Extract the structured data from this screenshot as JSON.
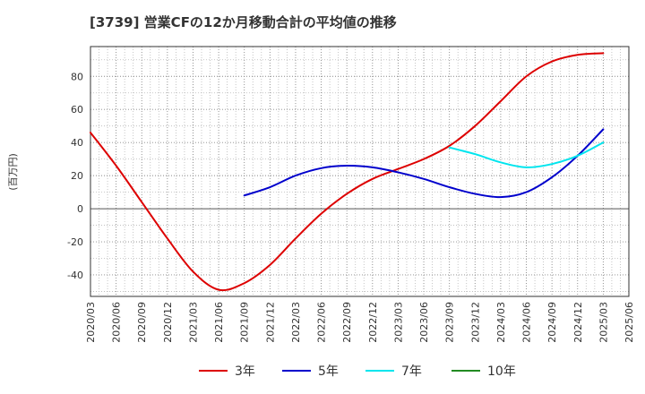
{
  "title": "[3739]  営業CFの12か月移動合計の平均値の推移",
  "chart_data": {
    "type": "line",
    "title": "[3739]  営業CFの12か月移動合計の平均値の推移",
    "ylabel": "(百万円)",
    "xlabel": "",
    "ylim": [
      -53,
      98
    ],
    "yticks": [
      -40,
      -20,
      0,
      20,
      40,
      60,
      80
    ],
    "x_ticks": [
      "2020/03",
      "2020/06",
      "2020/09",
      "2020/12",
      "2021/03",
      "2021/06",
      "2021/09",
      "2021/12",
      "2022/03",
      "2022/06",
      "2022/09",
      "2022/12",
      "2023/03",
      "2023/06",
      "2023/09",
      "2023/12",
      "2024/03",
      "2024/06",
      "2024/09",
      "2024/12",
      "2025/03",
      "2025/06"
    ],
    "grid": true,
    "legend_position": "bottom",
    "series": [
      {
        "name": "3年",
        "color": "#dd0000",
        "x": [
          "2020/03",
          "2020/06",
          "2020/09",
          "2020/12",
          "2021/03",
          "2021/06",
          "2021/09",
          "2021/12",
          "2022/03",
          "2022/06",
          "2022/09",
          "2022/12",
          "2023/03",
          "2023/06",
          "2023/09",
          "2023/12",
          "2024/03",
          "2024/06",
          "2024/09",
          "2024/12",
          "2025/03"
        ],
        "values": [
          46,
          26,
          4,
          -18,
          -38,
          -49,
          -45,
          -34,
          -18,
          -3,
          9,
          18,
          24,
          30,
          38,
          50,
          65,
          80,
          89,
          93,
          94
        ]
      },
      {
        "name": "5年",
        "color": "#0000cc",
        "x": [
          "2021/09",
          "2021/12",
          "2022/03",
          "2022/06",
          "2022/09",
          "2022/12",
          "2023/03",
          "2023/06",
          "2023/09",
          "2023/12",
          "2024/03",
          "2024/06",
          "2024/09",
          "2024/12",
          "2025/03"
        ],
        "values": [
          8,
          13,
          20,
          24.5,
          26,
          25,
          22,
          18,
          13,
          9,
          7,
          10,
          19,
          32,
          48
        ]
      },
      {
        "name": "7年",
        "color": "#00e5ee",
        "x": [
          "2023/09",
          "2023/12",
          "2024/03",
          "2024/06",
          "2024/09",
          "2024/12",
          "2025/03"
        ],
        "values": [
          37,
          33,
          28,
          25,
          27,
          32,
          40
        ]
      },
      {
        "name": "10年",
        "color": "#228b22",
        "x": [],
        "values": []
      }
    ]
  }
}
